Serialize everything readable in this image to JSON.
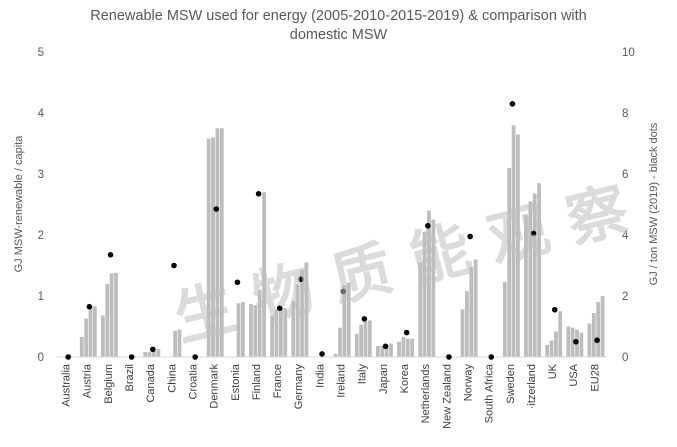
{
  "chart_data": {
    "type": "bar",
    "title_line1": "Renewable MSW used for energy (2005-2010-2015-2019) & comparison with",
    "title_line2": "domestic MSW",
    "ylabel": "GJ MSW-renewable / capita",
    "y2label": "GJ / ton MSW (2019) - black dots",
    "ylim": [
      0,
      5
    ],
    "y2lim": [
      0,
      10
    ],
    "yticks": [
      "0",
      "1",
      "2",
      "3",
      "4",
      "5"
    ],
    "y2ticks": [
      "0",
      "2",
      "4",
      "6",
      "8",
      "10"
    ],
    "bar_color": "#bdbdbd",
    "dot_color": "#000000",
    "watermark": "生 物 质 能 观 察",
    "categories": [
      "Australia",
      "Austria",
      "Belgium",
      "Brazil",
      "Canada",
      "China",
      "Croatia",
      "Denmark",
      "Estonia",
      "Finland",
      "France",
      "Germany",
      "India",
      "Ireland",
      "Italy",
      "Japan",
      "Korea",
      "Netherlands",
      "New Zealand",
      "Norway",
      "South Africa",
      "Sweden",
      "Switzerland",
      "UK",
      "USA",
      "EU28"
    ],
    "category_labels": [
      "Australia",
      "Austria",
      "Belgium",
      "Brazil",
      "Canada",
      "China",
      "Croatia",
      "Denmark",
      "Estonia",
      "Finland",
      "France",
      "Germany",
      "India",
      "Ireland",
      "Italy",
      "Japan",
      "Korea",
      "Netherlands",
      "New Zealand",
      "Norway",
      "South Africa",
      "Sweden",
      "·itzerland",
      "UK",
      "USA",
      "EU28"
    ],
    "series": [
      {
        "name": "2005",
        "values": [
          0,
          0.33,
          0.68,
          0,
          0.08,
          0,
          0,
          3.58,
          0,
          0.87,
          0.68,
          0.92,
          0,
          0.05,
          0.38,
          0.18,
          0.25,
          1.55,
          0,
          0.78,
          0,
          1.23,
          2.33,
          0.2,
          0.5,
          0.55
        ]
      },
      {
        "name": "2010",
        "values": [
          0,
          0.63,
          1.2,
          0,
          0.08,
          0,
          0,
          3.6,
          0,
          0.85,
          0.78,
          1.18,
          0,
          0.48,
          0.53,
          0.18,
          0.33,
          2.05,
          0,
          1.08,
          0,
          3.1,
          2.55,
          0.27,
          0.48,
          0.72
        ]
      },
      {
        "name": "2015",
        "values": [
          0,
          0.83,
          1.37,
          0,
          0.1,
          0.43,
          0,
          3.75,
          0.88,
          1.1,
          0.78,
          1.43,
          0,
          1.18,
          0.58,
          0.2,
          0.3,
          2.4,
          0,
          1.48,
          0,
          3.8,
          2.68,
          0.42,
          0.45,
          0.9
        ]
      },
      {
        "name": "2019",
        "values": [
          0,
          0.83,
          1.38,
          0,
          0.13,
          0.45,
          0,
          3.75,
          0.9,
          2.7,
          0.8,
          1.55,
          0,
          1.22,
          0.6,
          0.22,
          0.3,
          2.25,
          0,
          1.6,
          0,
          3.65,
          2.85,
          0.75,
          0.4,
          1.0
        ]
      }
    ],
    "dots_y2": [
      0,
      1.65,
      3.35,
      0,
      0.25,
      3.0,
      0,
      4.85,
      2.45,
      5.35,
      1.6,
      2.55,
      0.1,
      2.15,
      1.25,
      0.35,
      0.8,
      4.3,
      0,
      3.95,
      0,
      8.3,
      4.05,
      1.55,
      0.5,
      0.55
    ],
    "legend": "none",
    "grid": false
  }
}
